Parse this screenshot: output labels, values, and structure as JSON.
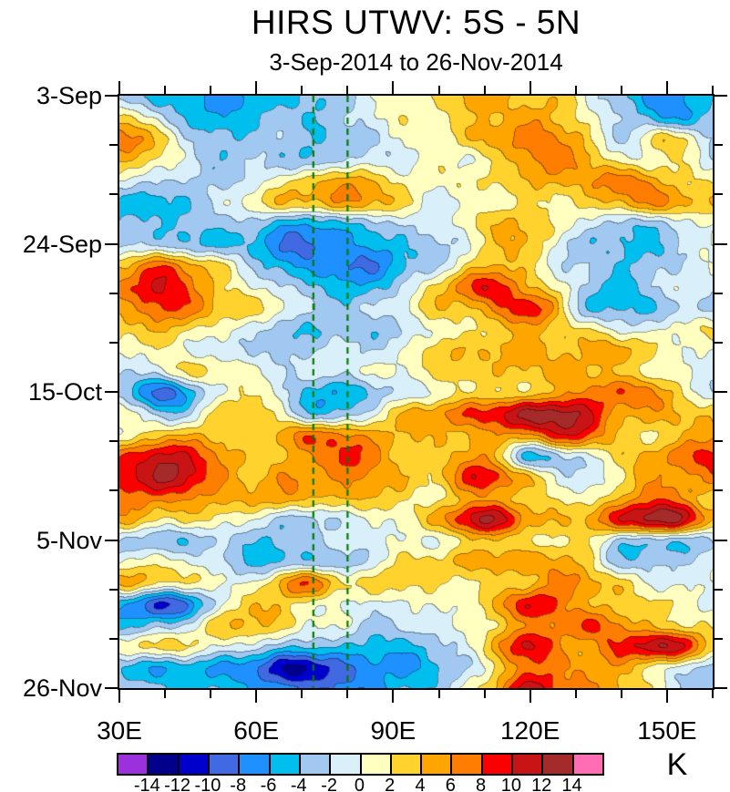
{
  "title": "HIRS UTWV: 5S - 5N",
  "subtitle": "3-Sep-2014 to 26-Nov-2014",
  "colorbar": {
    "unit": "K",
    "tick_labels": [
      "-14",
      "-12",
      "-10",
      "-8",
      "-6",
      "-4",
      "-2",
      "0",
      "2",
      "4",
      "6",
      "8",
      "10",
      "12",
      "14"
    ],
    "palette": [
      "#9B30DC",
      "#00008C",
      "#0000CD",
      "#4169E1",
      "#1E90FF",
      "#00BFEF",
      "#A0C8F0",
      "#D9F0FA",
      "#FFFFC0",
      "#FFD22E",
      "#FFA500",
      "#FF7D00",
      "#FA0000",
      "#C81414",
      "#A52A2A",
      "#FF6EB4"
    ]
  },
  "chart_data": {
    "type": "heatmap",
    "title": "HIRS UTWV: 5S - 5N",
    "subtitle": "3-Sep-2014 to 26-Nov-2014",
    "description": "Hovmoller (time-longitude) diagram of HIRS upper-tropospheric water vapor brightness-temperature anomaly averaged 5S-5N",
    "units": "K",
    "x_axis": {
      "range_degrees_east": [
        30,
        160
      ],
      "major_ticks": [
        30,
        60,
        90,
        120,
        150
      ],
      "major_tick_labels": [
        "30E",
        "60E",
        "90E",
        "120E",
        "150E"
      ],
      "minor_tick_step": 10
    },
    "y_axis": {
      "start_date": "3-Sep-2014",
      "end_date": "26-Nov-2014",
      "range_days": [
        0,
        84
      ],
      "major_tick_days": [
        0,
        21,
        42,
        63,
        84
      ],
      "major_tick_labels": [
        "3-Sep",
        "24-Sep",
        "15-Oct",
        "5-Nov",
        "26-Nov"
      ],
      "minor_tick_step_days": 7,
      "direction": "time increases downward"
    },
    "contour_levels": [
      -14,
      -12,
      -10,
      -8,
      -6,
      -4,
      -2,
      0,
      2,
      4,
      6,
      8,
      10,
      12,
      14
    ],
    "palette": [
      "#9B30DC",
      "#00008C",
      "#0000CD",
      "#4169E1",
      "#1E90FF",
      "#00BFEF",
      "#A0C8F0",
      "#D9F0FA",
      "#FFFFC0",
      "#FFD22E",
      "#FFA500",
      "#FF7D00",
      "#FA0000",
      "#C81414",
      "#A52A2A",
      "#FF6EB4"
    ],
    "reference_lines": {
      "longitudes_east": [
        72.5,
        80
      ],
      "color": "#007A00",
      "style": "dashed"
    },
    "grid": {
      "comment": "Estimated anomaly values (K) sampled every 10 deg lon (30E-160E) and every 3 days (3-Sep to 26-Nov), read from the contour fills",
      "lon_start": 30,
      "lon_step": 10,
      "day_start": 0,
      "day_step": 3,
      "values": [
        [
          -4,
          -5,
          -7,
          -5,
          -4,
          -2,
          0,
          2,
          5,
          4,
          2,
          -4,
          -8,
          -4
        ],
        [
          2,
          -2,
          -6,
          -4,
          -3,
          -2,
          0,
          2,
          4,
          5,
          3,
          -2,
          -7,
          -3
        ],
        [
          7,
          2,
          -3,
          -4,
          -3,
          -3,
          -1,
          2,
          5,
          6,
          5,
          -2,
          3,
          -2
        ],
        [
          4,
          1,
          -2,
          -3,
          -4,
          -2,
          -1,
          1,
          2,
          5,
          6,
          0,
          2,
          -1
        ],
        [
          0,
          -2,
          -2,
          -1,
          3,
          4,
          2,
          1,
          3,
          4,
          5,
          6,
          4,
          2
        ],
        [
          -5,
          -4,
          -2,
          2,
          5,
          5,
          3,
          0,
          1,
          2,
          3,
          4,
          6,
          4
        ],
        [
          -4,
          -3,
          -3,
          -4,
          -5,
          -4,
          -2,
          0,
          3,
          3,
          1,
          -3,
          -2,
          2
        ],
        [
          -2,
          -2,
          -4,
          -6,
          -9,
          -6,
          -4,
          -2,
          2,
          3,
          -3,
          -4,
          -3,
          1
        ],
        [
          5,
          7,
          3,
          -3,
          -7,
          -8,
          -5,
          -2,
          4,
          2,
          -3,
          -3,
          -2,
          -1
        ],
        [
          7,
          9,
          4,
          0,
          -4,
          -5,
          -3,
          2,
          10,
          4,
          -2,
          -4,
          -1,
          -2
        ],
        [
          4,
          8,
          6,
          2,
          -2,
          -3,
          -1,
          3,
          6,
          9,
          -2,
          -5,
          -3,
          -2
        ],
        [
          4,
          4,
          2,
          -2,
          -4,
          -4,
          -2,
          1,
          3,
          4,
          2,
          -1,
          1,
          2
        ],
        [
          2,
          1,
          -1,
          -2,
          -3,
          -2,
          0,
          3,
          4,
          5,
          3,
          5,
          2,
          -1
        ],
        [
          -2,
          0,
          2,
          1,
          -2,
          -1,
          1,
          2,
          3,
          5,
          4,
          3,
          1,
          -2
        ],
        [
          -3,
          -9,
          -2,
          3,
          -4,
          -5,
          -2,
          0,
          2,
          4,
          6,
          8,
          4,
          -2
        ],
        [
          2,
          -4,
          1,
          4,
          -3,
          -2,
          2,
          6,
          8,
          13,
          12,
          6,
          4,
          3
        ],
        [
          0,
          3,
          4,
          2,
          6,
          7,
          4,
          3,
          5,
          6,
          9,
          4,
          2,
          5
        ],
        [
          8,
          10,
          7,
          4,
          4,
          9,
          4,
          2,
          6,
          -4,
          -2,
          3,
          6,
          8
        ],
        [
          9,
          12,
          7,
          5,
          6,
          6,
          4,
          3,
          10,
          4,
          -2,
          2,
          5,
          6
        ],
        [
          6,
          7,
          5,
          5,
          5,
          4,
          2,
          2,
          6,
          3,
          2,
          4,
          7,
          3
        ],
        [
          4,
          3,
          2,
          -1,
          -2,
          -1,
          0,
          6,
          12,
          5,
          5,
          9,
          13,
          6
        ],
        [
          -2,
          -3,
          -3,
          -4,
          -2,
          -1,
          0,
          1,
          3,
          2,
          3,
          -2,
          -3,
          -2
        ],
        [
          0,
          1,
          -2,
          -4,
          -3,
          -2,
          1,
          3,
          4,
          6,
          4,
          -2,
          -3,
          -1
        ],
        [
          3,
          2,
          1,
          0,
          8,
          3,
          2,
          2,
          2,
          4,
          7,
          3,
          -2,
          1
        ],
        [
          -6,
          -10,
          -2,
          3,
          2,
          0,
          -1,
          1,
          3,
          9,
          6,
          3,
          2,
          0
        ],
        [
          -4,
          -3,
          3,
          3,
          1,
          -1,
          -2,
          0,
          2,
          5,
          8,
          6,
          3,
          2
        ],
        [
          2,
          3,
          1,
          -2,
          -4,
          -5,
          -4,
          -3,
          3,
          10,
          4,
          8,
          13,
          3
        ],
        [
          -4,
          -5,
          -6,
          -8,
          -12,
          -9,
          -6,
          -4,
          0,
          8,
          6,
          4,
          1,
          -2
        ],
        [
          -2,
          -3,
          -5,
          -6,
          -7,
          -8,
          -5,
          -2,
          2,
          11,
          7,
          4,
          0,
          -3
        ]
      ]
    }
  }
}
